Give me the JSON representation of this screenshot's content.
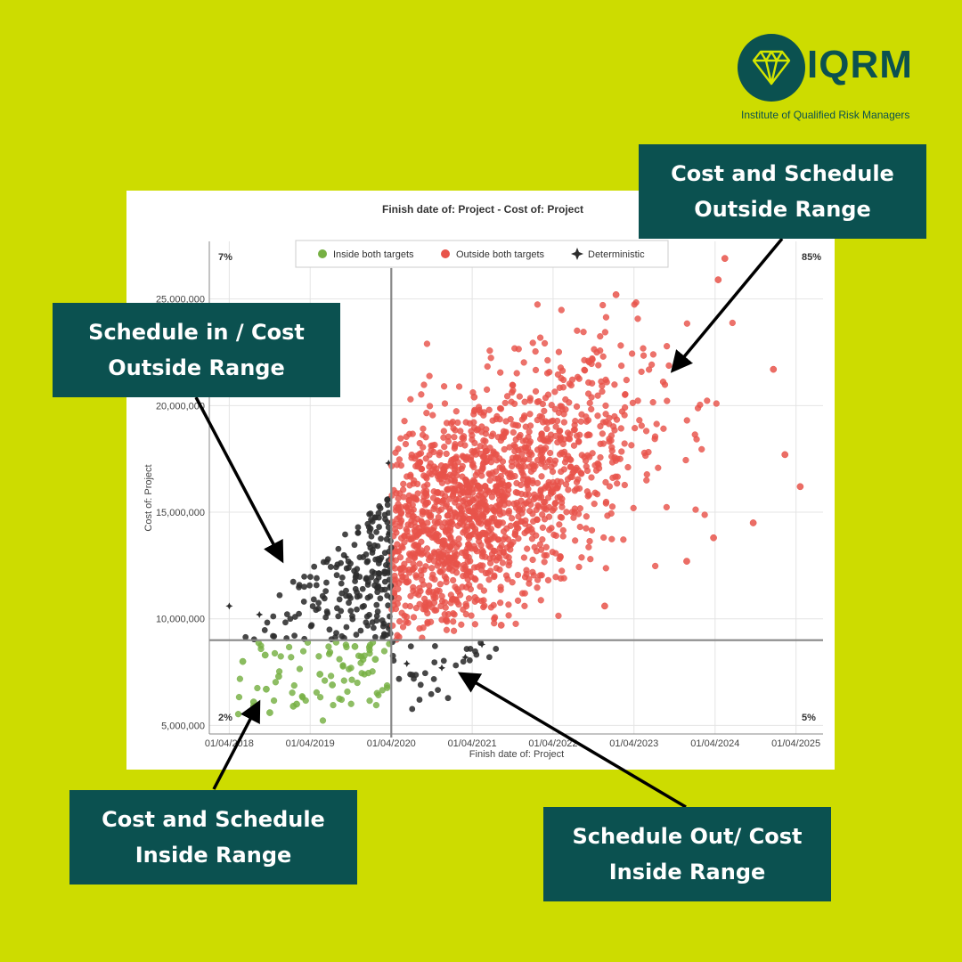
{
  "logo": {
    "name": "IQRM",
    "subtitle": "Institute of Qualified Risk Managers",
    "color": "#0b5150"
  },
  "callouts": {
    "top_right": "Cost and Schedule Outside Range",
    "left": "Schedule in / Cost Outside Range",
    "bottom_left": "Cost and Schedule Inside Range",
    "bottom_right": "Schedule Out/ Cost Inside Range"
  },
  "colors": {
    "background": "#cddc00",
    "callout": "#0b5150",
    "inside": "#76b043",
    "outside": "#e8534a",
    "deterministic": "#2e2e2e"
  },
  "chart_data": {
    "type": "scatter",
    "title": "Finish date of: Project - Cost of: Project",
    "xlabel": "Finish date of: Project",
    "ylabel": "Cost of: Project",
    "x_ticks": [
      "01/04/2018",
      "01/04/2019",
      "01/04/2020",
      "01/04/2021",
      "01/04/2022",
      "01/04/2023",
      "01/04/2024",
      "01/04/2025"
    ],
    "y_ticks": [
      "5,000,000",
      "10,000,000",
      "15,000,000",
      "20,000,000",
      "25,000,000"
    ],
    "xlim": [
      "2018-01-01",
      "2025-08-01"
    ],
    "ylim": [
      4600000,
      27700000
    ],
    "grid": true,
    "legend_position": "top-center",
    "target_lines": {
      "finish_date": "2020-04-01",
      "cost": 9000000
    },
    "quadrant_labels": {
      "top_left": "7%",
      "top_right": "85%",
      "bottom_left": "2%",
      "bottom_right": "5%"
    },
    "series": [
      {
        "name": "Inside both targets",
        "color": "#76b043",
        "points": [
          [
            "2018-07-20",
            6100000
          ],
          [
            "2018-09-15",
            6700000
          ],
          [
            "2018-10-01",
            5600000
          ],
          [
            "2018-11-10",
            7300000
          ],
          [
            "2019-01-15",
            5900000
          ],
          [
            "2019-01-30",
            6000000
          ],
          [
            "2019-05-15",
            7400000
          ],
          [
            "2019-07-10",
            6900000
          ],
          [
            "2018-06-01",
            8000000
          ],
          [
            "2018-09-10",
            8300000
          ],
          [
            "2019-10-20",
            8700000
          ],
          [
            "2020-01-20",
            8100000
          ]
        ]
      },
      {
        "name": "Outside both targets",
        "color": "#e8534a",
        "points": [
          [
            "2024-05-15",
            26900000
          ],
          [
            "2024-04-15",
            25900000
          ],
          [
            "2023-01-10",
            25200000
          ],
          [
            "2024-12-20",
            21700000
          ],
          [
            "2025-02-10",
            17700000
          ],
          [
            "2025-04-20",
            16200000
          ],
          [
            "2024-09-20",
            14500000
          ],
          [
            "2024-03-25",
            13800000
          ],
          [
            "2023-11-25",
            12700000
          ],
          [
            "2022-11-20",
            10600000
          ],
          [
            "2021-04-10",
            20400000
          ],
          [
            "2021-08-10",
            9700000
          ]
        ]
      },
      {
        "name": "Deterministic",
        "color": "#2e2e2e",
        "points": [
          [
            "2018-04-01",
            10600000
          ],
          [
            "2018-08-15",
            10200000
          ],
          [
            "2019-09-10",
            12900000
          ],
          [
            "2020-03-20",
            17300000
          ],
          [
            "2020-06-10",
            7900000
          ],
          [
            "2020-11-15",
            7700000
          ],
          [
            "2021-03-01",
            8200000
          ],
          [
            "2021-05-15",
            8800000
          ]
        ]
      }
    ]
  }
}
